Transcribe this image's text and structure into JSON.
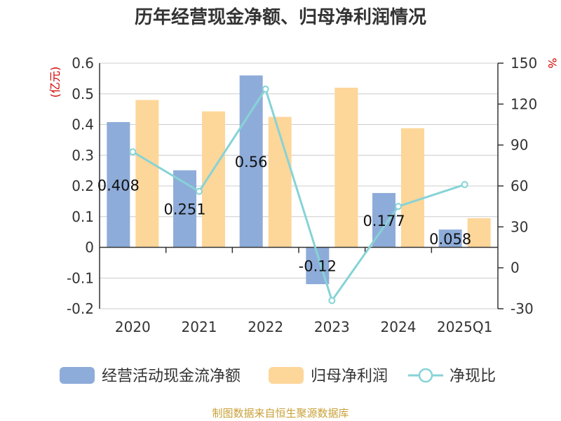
{
  "title": "历年经营现金净额、归母净利润情况",
  "source": "制图数据来自恒生聚源数据库",
  "colors": {
    "cash": "#8eacd9",
    "profit": "#fdd699",
    "ratio": "#86d3d6",
    "axis_label": "#d10000",
    "text": "#333333",
    "grid": "#cccccc"
  },
  "chart_data": {
    "type": "bar",
    "title": "历年经营现金净额、归母净利润情况",
    "categories": [
      "2020",
      "2021",
      "2022",
      "2023",
      "2024",
      "2025Q1"
    ],
    "ylabel_left": "(亿元)",
    "ylabel_right": "%",
    "ylim_left": [
      -0.2,
      0.6
    ],
    "ylim_right": [
      -30,
      150
    ],
    "yticks_left": [
      "0.6",
      "0.5",
      "0.4",
      "0.3",
      "0.2",
      "0.1",
      "0",
      "-0.1",
      "-0.2"
    ],
    "yticks_right": [
      "150",
      "120",
      "90",
      "60",
      "30",
      "0",
      "-30"
    ],
    "grid": true,
    "legend_position": "bottom",
    "series": [
      {
        "name": "经营活动现金流净额",
        "kind": "bar",
        "axis": "left",
        "values": [
          0.408,
          0.251,
          0.56,
          -0.12,
          0.177,
          0.058
        ],
        "labels": [
          "0.408",
          "0.251",
          "0.56",
          "-0.12",
          "0.177",
          "0.058"
        ]
      },
      {
        "name": "归母净利润",
        "kind": "bar",
        "axis": "left",
        "values": [
          0.48,
          0.443,
          0.425,
          0.52,
          0.388,
          0.095
        ]
      },
      {
        "name": "净现比",
        "kind": "line",
        "axis": "right",
        "values": [
          85,
          56,
          131,
          -24,
          45,
          61
        ]
      }
    ]
  }
}
